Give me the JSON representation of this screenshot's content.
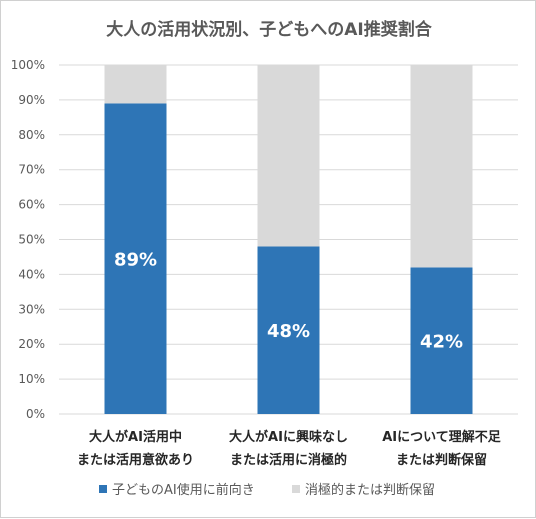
{
  "chart_data": {
    "type": "bar",
    "stacked": true,
    "title": "大人の活用状況別、子どもへのAI推奨割合",
    "categories": [
      [
        "大人がAI活用中",
        "または活用意欲あり"
      ],
      [
        "大人がAIに興味なし",
        "または活用に消極的"
      ],
      [
        "AIについて理解不足",
        "または判断保留"
      ]
    ],
    "series": [
      {
        "name": "子どものAI使用に前向き",
        "values": [
          89,
          48,
          42
        ],
        "color": "#2e75b6",
        "show_labels": true
      },
      {
        "name": "消極的または判断保留",
        "values": [
          11,
          52,
          58
        ],
        "color": "#d9d9d9",
        "show_labels": false
      }
    ],
    "ylim": [
      0,
      100
    ],
    "yticks": [
      "0%",
      "10%",
      "20%",
      "30%",
      "40%",
      "50%",
      "60%",
      "70%",
      "80%",
      "90%",
      "100%"
    ],
    "value_suffix": "%",
    "grid": true,
    "legend_position": "bottom"
  }
}
